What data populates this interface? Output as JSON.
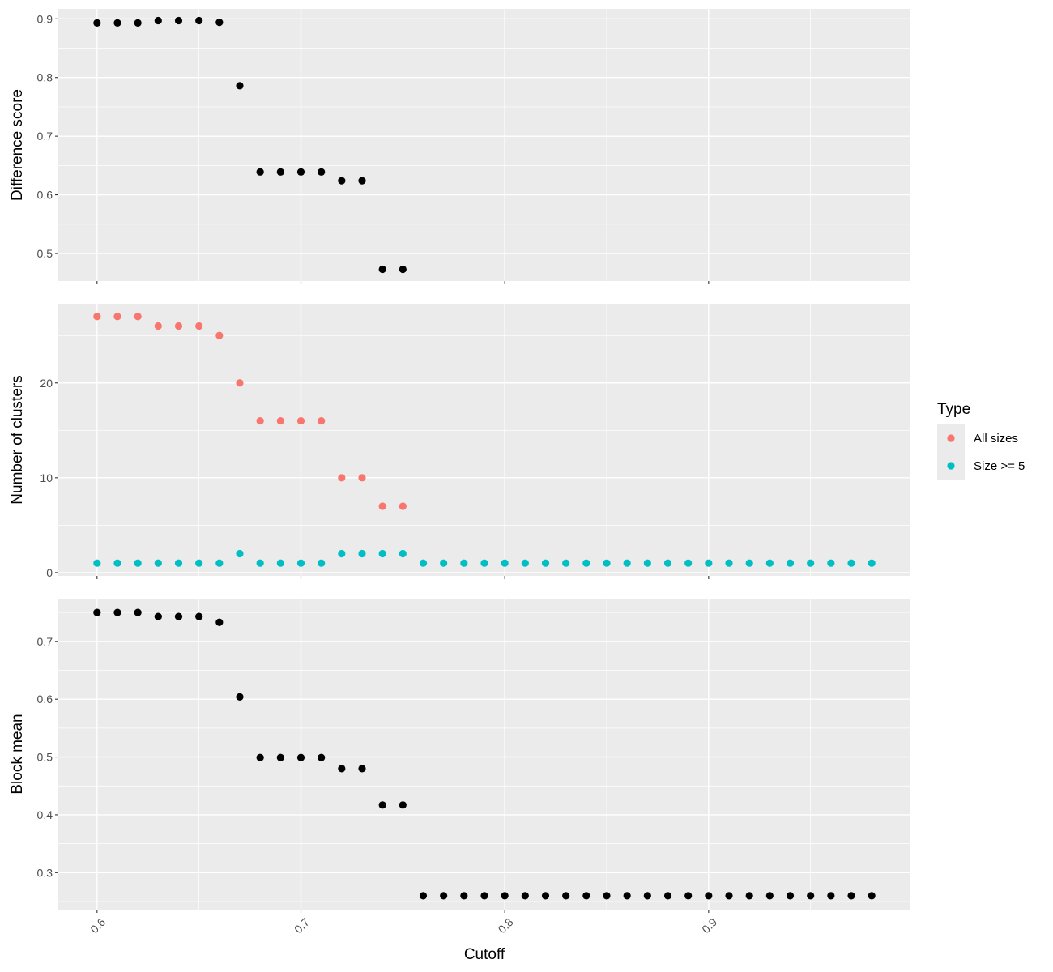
{
  "chart_data": [
    {
      "type": "scatter",
      "ylabel": "Difference score",
      "ylim": [
        0.453,
        0.917
      ],
      "yticks": [
        0.5,
        0.6,
        0.7,
        0.8,
        0.9
      ],
      "ytick_labels": [
        "0.5",
        "0.6",
        "0.7",
        "0.8",
        "0.9"
      ],
      "series": [
        {
          "color": "#000000",
          "x": [
            0.6,
            0.61,
            0.62,
            0.63,
            0.64,
            0.65,
            0.66,
            0.67,
            0.68,
            0.69,
            0.7,
            0.71,
            0.72,
            0.73,
            0.74,
            0.75
          ],
          "y": [
            0.893,
            0.893,
            0.893,
            0.897,
            0.897,
            0.897,
            0.894,
            0.786,
            0.639,
            0.639,
            0.639,
            0.639,
            0.624,
            0.624,
            0.473,
            0.473
          ]
        }
      ]
    },
    {
      "type": "scatter",
      "ylabel": "Number of clusters",
      "ylim": [
        -0.35,
        28.35
      ],
      "yticks": [
        0,
        10,
        20
      ],
      "ytick_labels": [
        "0",
        "10",
        "20"
      ],
      "legend": {
        "title": "Type",
        "position": "right"
      },
      "series": [
        {
          "name": "All sizes",
          "color": "#F8766D",
          "x": [
            0.6,
            0.61,
            0.62,
            0.63,
            0.64,
            0.65,
            0.66,
            0.67,
            0.68,
            0.69,
            0.7,
            0.71,
            0.72,
            0.73,
            0.74,
            0.75
          ],
          "y": [
            27,
            27,
            27,
            26,
            26,
            26,
            25,
            20,
            16,
            16,
            16,
            16,
            10,
            10,
            7,
            7
          ]
        },
        {
          "name": "Size >= 5",
          "color": "#00BFC4",
          "x": [
            0.6,
            0.61,
            0.62,
            0.63,
            0.64,
            0.65,
            0.66,
            0.67,
            0.68,
            0.69,
            0.7,
            0.71,
            0.72,
            0.73,
            0.74,
            0.75,
            0.76,
            0.77,
            0.78,
            0.79,
            0.8,
            0.81,
            0.82,
            0.83,
            0.84,
            0.85,
            0.86,
            0.87,
            0.88,
            0.89,
            0.9,
            0.91,
            0.92,
            0.93,
            0.94,
            0.95,
            0.96,
            0.97,
            0.98
          ],
          "y": [
            1,
            1,
            1,
            1,
            1,
            1,
            1,
            2,
            1,
            1,
            1,
            1,
            2,
            2,
            2,
            2,
            1,
            1,
            1,
            1,
            1,
            1,
            1,
            1,
            1,
            1,
            1,
            1,
            1,
            1,
            1,
            1,
            1,
            1,
            1,
            1,
            1,
            1,
            1
          ]
        }
      ]
    },
    {
      "type": "scatter",
      "ylabel": "Block mean",
      "xlabel": "Cutoff",
      "ylim": [
        0.236,
        0.774
      ],
      "yticks": [
        0.3,
        0.4,
        0.5,
        0.6,
        0.7
      ],
      "ytick_labels": [
        "0.3",
        "0.4",
        "0.5",
        "0.6",
        "0.7"
      ],
      "series": [
        {
          "color": "#000000",
          "x": [
            0.6,
            0.61,
            0.62,
            0.63,
            0.64,
            0.65,
            0.66,
            0.67,
            0.68,
            0.69,
            0.7,
            0.71,
            0.72,
            0.73,
            0.74,
            0.75,
            0.76,
            0.77,
            0.78,
            0.79,
            0.8,
            0.81,
            0.82,
            0.83,
            0.84,
            0.85,
            0.86,
            0.87,
            0.88,
            0.89,
            0.9,
            0.91,
            0.92,
            0.93,
            0.94,
            0.95,
            0.96,
            0.97,
            0.98
          ],
          "y": [
            0.75,
            0.75,
            0.75,
            0.743,
            0.743,
            0.743,
            0.733,
            0.604,
            0.499,
            0.499,
            0.499,
            0.499,
            0.48,
            0.48,
            0.417,
            0.417,
            0.26,
            0.26,
            0.26,
            0.26,
            0.26,
            0.26,
            0.26,
            0.26,
            0.26,
            0.26,
            0.26,
            0.26,
            0.26,
            0.26,
            0.26,
            0.26,
            0.26,
            0.26,
            0.26,
            0.26,
            0.26,
            0.26,
            0.26
          ]
        }
      ]
    }
  ],
  "x_axis": {
    "label": "Cutoff",
    "xlim": [
      0.581,
      0.999
    ],
    "ticks": [
      0.6,
      0.7,
      0.8,
      0.9
    ],
    "tick_labels": [
      "0.6",
      "0.7",
      "0.8",
      "0.9"
    ]
  },
  "legend": {
    "title": "Type",
    "items": [
      {
        "label": "All sizes",
        "color": "#F8766D"
      },
      {
        "label": "Size >= 5",
        "color": "#00BFC4"
      }
    ]
  },
  "panel_background": "#EBEBEB",
  "grid": true
}
